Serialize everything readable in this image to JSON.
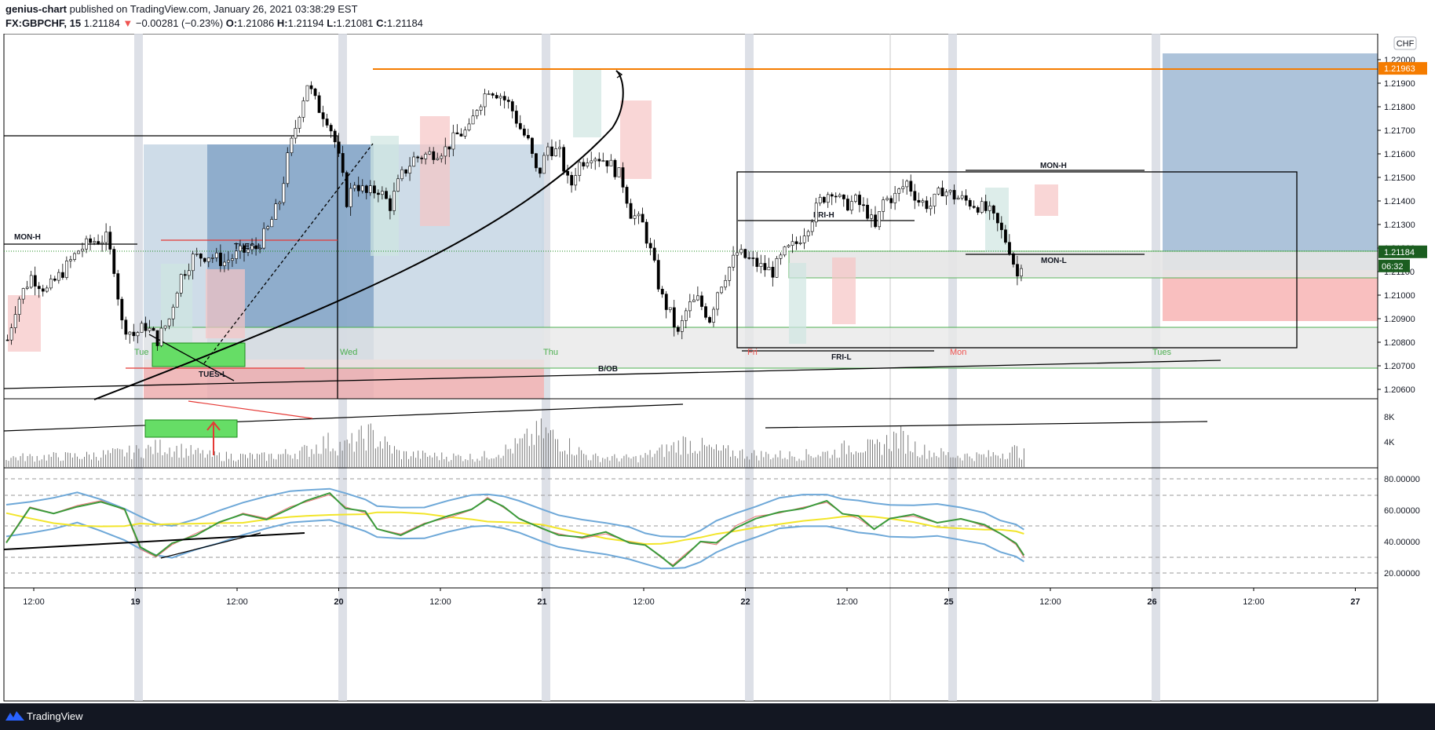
{
  "header": {
    "author": "genius-chart",
    "published_text": "published on TradingView.com, January 26, 2021 03:38:29 EST",
    "symbol": "FX:GBPCHF, 15",
    "last": "1.21184",
    "arrow": "▼",
    "change": "−0.00281 (−0.23%)",
    "o_label": "O:",
    "o": "1.21086",
    "h_label": "H:",
    "h": "1.21194",
    "l_label": "L:",
    "l": "1.21081",
    "c_label": "C:",
    "c": "1.21184"
  },
  "price_axis": {
    "currency": "CHF",
    "ticks": [
      "1.22000",
      "1.21900",
      "1.21800",
      "1.21700",
      "1.21600",
      "1.21500",
      "1.21400",
      "1.21300",
      "1.21200",
      "1.21100",
      "1.21000",
      "1.20900",
      "1.20800",
      "1.20700",
      "1.20600"
    ],
    "tick_values": [
      1.22,
      1.219,
      1.218,
      1.217,
      1.216,
      1.215,
      1.214,
      1.213,
      1.212,
      1.211,
      1.21,
      1.209,
      1.208,
      1.207,
      1.206
    ],
    "current_price": "1.21184",
    "current_value": 1.21184,
    "orange_level": "1.21963",
    "orange_value": 1.21963,
    "countdown": "06:32"
  },
  "volume_axis": {
    "ticks": [
      "8K",
      "4K"
    ],
    "tick_values": [
      8000,
      4000
    ]
  },
  "osc_axis": {
    "ticks": [
      "80.00000",
      "60.00000",
      "40.00000",
      "20.00000"
    ],
    "tick_values": [
      80,
      60,
      40,
      20
    ]
  },
  "time_axis": {
    "ticks": [
      "12:00",
      "19",
      "12:00",
      "20",
      "12:00",
      "21",
      "12:00",
      "22",
      "12:00",
      "25",
      "12:00",
      "26",
      "12:00",
      "27"
    ],
    "tick_bold": [
      false,
      true,
      false,
      true,
      false,
      true,
      false,
      true,
      false,
      true,
      false,
      true,
      false,
      true
    ]
  },
  "annotations": {
    "mon_h_left": "MON-H",
    "tues_l_top": "TUES-L",
    "tues_l_bottom": "TUES-L",
    "fri_h": "FRI-H",
    "fri_l": "FRI-L",
    "mon_h_right": "MON-H",
    "mon_l": "MON-L",
    "b_ob": "B/OB"
  },
  "sessions": {
    "tue_1": "Tue",
    "wed": "Wed",
    "thu": "Thu",
    "fri": "Fri",
    "mon": "Mon",
    "tues_2": "Tues"
  },
  "colors": {
    "up": "#26a69a",
    "down": "#ef5350",
    "orange": "#f57c00",
    "green_zone": "#4caf50",
    "blue_zone": "#5b87b5",
    "footer": "#131722",
    "price_tag": "#1b5e20"
  },
  "footer": {
    "brand": "TradingView"
  },
  "chart_data": [
    {
      "type": "candlestick",
      "title": "FX:GBPCHF, 15",
      "x_ticks": [
        "12:00",
        "19",
        "12:00",
        "20",
        "12:00",
        "21",
        "12:00",
        "22",
        "12:00",
        "25",
        "12:00",
        "26",
        "12:00",
        "27"
      ],
      "ylim": [
        1.2055,
        1.2215
      ],
      "close_path": [
        [
          0,
          1.2081
        ],
        [
          12,
          1.2097
        ],
        [
          30,
          1.2108
        ],
        [
          50,
          1.2102
        ],
        [
          70,
          1.211
        ],
        [
          90,
          1.2119
        ],
        [
          108,
          1.2123
        ],
        [
          125,
          1.2124
        ],
        [
          135,
          1.2112
        ],
        [
          145,
          1.2088
        ],
        [
          160,
          1.2083
        ],
        [
          175,
          1.2087
        ],
        [
          190,
          1.2081
        ],
        [
          205,
          1.209
        ],
        [
          218,
          1.2107
        ],
        [
          235,
          1.2116
        ],
        [
          255,
          1.2117
        ],
        [
          275,
          1.2114
        ],
        [
          295,
          1.2118
        ],
        [
          315,
          1.212
        ],
        [
          330,
          1.2128
        ],
        [
          345,
          1.214
        ],
        [
          355,
          1.2158
        ],
        [
          370,
          1.2178
        ],
        [
          380,
          1.219
        ],
        [
          393,
          1.218
        ],
        [
          405,
          1.2175
        ],
        [
          413,
          1.2168
        ],
        [
          422,
          1.2155
        ],
        [
          430,
          1.214
        ],
        [
          440,
          1.2148
        ],
        [
          455,
          1.2143
        ],
        [
          470,
          1.2145
        ],
        [
          485,
          1.2138
        ],
        [
          498,
          1.215
        ],
        [
          515,
          1.2158
        ],
        [
          535,
          1.216
        ],
        [
          555,
          1.2162
        ],
        [
          570,
          1.2168
        ],
        [
          585,
          1.217
        ],
        [
          595,
          1.218
        ],
        [
          610,
          1.2188
        ],
        [
          625,
          1.2185
        ],
        [
          638,
          1.218
        ],
        [
          648,
          1.2172
        ],
        [
          660,
          1.2165
        ],
        [
          672,
          1.215
        ],
        [
          685,
          1.2163
        ],
        [
          700,
          1.216
        ],
        [
          713,
          1.2145
        ],
        [
          722,
          1.2155
        ],
        [
          740,
          1.216
        ],
        [
          760,
          1.2157
        ],
        [
          778,
          1.215
        ],
        [
          790,
          1.2135
        ],
        [
          805,
          1.213
        ],
        [
          818,
          1.2115
        ],
        [
          828,
          1.21
        ],
        [
          840,
          1.2092
        ],
        [
          850,
          1.2083
        ],
        [
          862,
          1.2095
        ],
        [
          875,
          1.2098
        ],
        [
          890,
          1.209
        ],
        [
          900,
          1.2102
        ],
        [
          912,
          1.211
        ],
        [
          925,
          1.2118
        ],
        [
          940,
          1.2115
        ],
        [
          955,
          1.2112
        ],
        [
          970,
          1.211
        ],
        [
          985,
          1.2118
        ],
        [
          1000,
          1.2122
        ],
        [
          1015,
          1.213
        ],
        [
          1030,
          1.214
        ],
        [
          1045,
          1.2145
        ],
        [
          1060,
          1.2138
        ],
        [
          1075,
          1.214
        ],
        [
          1090,
          1.2135
        ],
        [
          1100,
          1.2128
        ],
        [
          1110,
          1.214
        ],
        [
          1125,
          1.2142
        ],
        [
          1140,
          1.2148
        ],
        [
          1155,
          1.214
        ],
        [
          1170,
          1.2138
        ],
        [
          1185,
          1.2145
        ],
        [
          1200,
          1.2142
        ],
        [
          1215,
          1.214
        ],
        [
          1230,
          1.2138
        ],
        [
          1245,
          1.2135
        ],
        [
          1258,
          1.2128
        ],
        [
          1270,
          1.212
        ],
        [
          1280,
          1.2108
        ],
        [
          1288,
          1.2118
        ]
      ]
    },
    {
      "type": "bar",
      "title": "Volume",
      "ylim": [
        0,
        10000
      ],
      "series": [
        {
          "values_envelope": [
            [
              0,
              2200
            ],
            [
              100,
              2600
            ],
            [
              160,
              3500
            ],
            [
              200,
              4800
            ],
            [
              260,
              2600
            ],
            [
              330,
              2400
            ],
            [
              380,
              3800
            ],
            [
              405,
              5800
            ],
            [
              430,
              4800
            ],
            [
              460,
              7600
            ],
            [
              500,
              3000
            ],
            [
              550,
              2500
            ],
            [
              600,
              2300
            ],
            [
              640,
              4300
            ],
            [
              680,
              8200
            ],
            [
              700,
              6400
            ],
            [
              740,
              2300
            ],
            [
              800,
              2000
            ],
            [
              840,
              4300
            ],
            [
              860,
              5800
            ],
            [
              900,
              3800
            ],
            [
              950,
              2900
            ],
            [
              1000,
              2700
            ],
            [
              1050,
              3400
            ],
            [
              1075,
              5300
            ],
            [
              1100,
              4300
            ],
            [
              1130,
              7100
            ],
            [
              1160,
              3900
            ],
            [
              1200,
              2700
            ],
            [
              1240,
              2600
            ],
            [
              1280,
              3900
            ],
            [
              1290,
              3000
            ]
          ]
        }
      ]
    },
    {
      "type": "line",
      "title": "Oscillator",
      "ylim": [
        15,
        85
      ],
      "series": [
        {
          "name": "",
          "values": [
            [
              0,
              40
            ],
            [
              30,
              62
            ],
            [
              60,
              58
            ],
            [
              90,
              63
            ],
            [
              120,
              66
            ],
            [
              150,
              60
            ],
            [
              170,
              35
            ],
            [
              190,
              30
            ],
            [
              210,
              38
            ],
            [
              240,
              45
            ],
            [
              270,
              52
            ],
            [
              300,
              58
            ],
            [
              330,
              55
            ],
            [
              360,
              62
            ],
            [
              380,
              65
            ],
            [
              410,
              70
            ],
            [
              430,
              62
            ],
            [
              455,
              58
            ],
            [
              470,
              48
            ],
            [
              500,
              45
            ],
            [
              530,
              52
            ],
            [
              560,
              55
            ],
            [
              590,
              60
            ],
            [
              610,
              68
            ],
            [
              630,
              62
            ],
            [
              650,
              55
            ],
            [
              680,
              48
            ],
            [
              700,
              45
            ],
            [
              730,
              42
            ],
            [
              760,
              45
            ],
            [
              790,
              40
            ],
            [
              810,
              38
            ],
            [
              830,
              30
            ],
            [
              845,
              25
            ],
            [
              860,
              32
            ],
            [
              880,
              40
            ],
            [
              900,
              38
            ],
            [
              925,
              50
            ],
            [
              950,
              56
            ],
            [
              980,
              58
            ],
            [
              1010,
              62
            ],
            [
              1040,
              65
            ],
            [
              1060,
              58
            ],
            [
              1080,
              55
            ],
            [
              1100,
              48
            ],
            [
              1120,
              55
            ],
            [
              1150,
              56
            ],
            [
              1180,
              52
            ],
            [
              1210,
              55
            ],
            [
              1240,
              50
            ],
            [
              1260,
              45
            ],
            [
              1280,
              38
            ],
            [
              1290,
              30
            ]
          ]
        }
      ]
    }
  ]
}
